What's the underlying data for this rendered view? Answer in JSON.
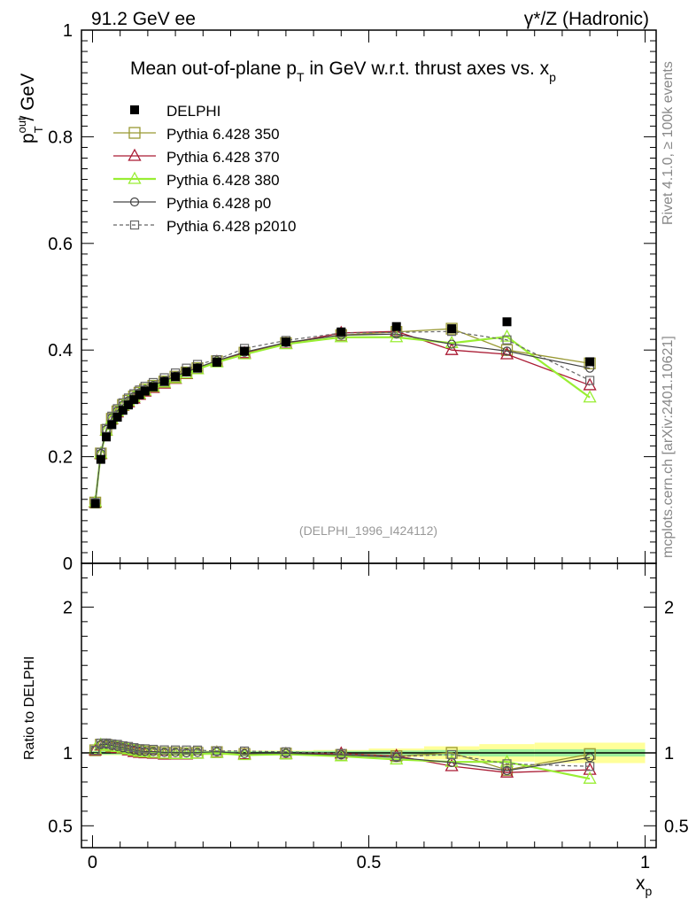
{
  "header": {
    "left": "91.2 GeV ee",
    "right": "γ*/Z (Hadronic)"
  },
  "side_labels": {
    "top": "Rivet 4.1.0, ≥ 100k events",
    "bottom": "mcplots.cern.ch [arXiv:2401.10621]"
  },
  "watermark": "(DELPHI_1996_I424112)",
  "colors": {
    "data": "#000000",
    "p350": "#999933",
    "p370": "#aa1a33",
    "p380": "#99ee33",
    "p0": "#444444",
    "p2010": "#666666",
    "band_inner": "#9bee9b",
    "band_outer": "#ffff99"
  },
  "chart_data": [
    {
      "type": "line",
      "panel": "main",
      "title": "Mean out-of-plane p_T in GeV w.r.t. thrust axes vs. x_p",
      "title_parts": {
        "prefix": "Mean out-of-plane p",
        "sub1": "T",
        "middle": " in GeV w.r.t. thrust axes vs. x",
        "sub2": "p"
      },
      "ylabel": {
        "base": "p",
        "sup": "out",
        "sub": "T",
        "rest": " / GeV"
      },
      "xlim": [
        -0.02,
        1.02
      ],
      "ylim": [
        0,
        1.0
      ],
      "yticks": [
        "0",
        "0.2",
        "0.4",
        "0.6",
        "0.8",
        "1"
      ],
      "x": [
        0.005,
        0.015,
        0.025,
        0.035,
        0.045,
        0.055,
        0.065,
        0.075,
        0.085,
        0.095,
        0.11,
        0.13,
        0.15,
        0.17,
        0.19,
        0.225,
        0.275,
        0.35,
        0.45,
        0.55,
        0.65,
        0.75,
        0.9
      ],
      "series": [
        {
          "name": "DELPHI",
          "style": "data",
          "values": [
            0.112,
            0.195,
            0.237,
            0.26,
            0.274,
            0.287,
            0.297,
            0.307,
            0.316,
            0.323,
            0.331,
            0.341,
            0.35,
            0.359,
            0.366,
            0.377,
            0.398,
            0.415,
            0.434,
            0.444,
            0.44,
            0.453,
            0.378
          ]
        },
        {
          "name": "Pythia 6.428 350",
          "style": "p350",
          "values": [
            0.114,
            0.206,
            0.25,
            0.271,
            0.285,
            0.297,
            0.305,
            0.313,
            0.32,
            0.326,
            0.333,
            0.341,
            0.35,
            0.358,
            0.366,
            0.379,
            0.395,
            0.413,
            0.428,
            0.434,
            0.44,
            0.4,
            0.375
          ]
        },
        {
          "name": "Pythia 6.428 370",
          "style": "p370",
          "values": [
            0.114,
            0.205,
            0.249,
            0.27,
            0.283,
            0.295,
            0.302,
            0.309,
            0.316,
            0.322,
            0.329,
            0.337,
            0.346,
            0.355,
            0.364,
            0.378,
            0.394,
            0.412,
            0.432,
            0.435,
            0.4,
            0.392,
            0.334
          ]
        },
        {
          "name": "Pythia 6.428 380",
          "style": "p380",
          "values": [
            0.115,
            0.206,
            0.249,
            0.271,
            0.285,
            0.296,
            0.304,
            0.312,
            0.318,
            0.324,
            0.331,
            0.339,
            0.347,
            0.356,
            0.364,
            0.377,
            0.392,
            0.411,
            0.424,
            0.424,
            0.413,
            0.425,
            0.311
          ]
        },
        {
          "name": "Pythia 6.428 p0",
          "style": "p0",
          "values": [
            0.114,
            0.206,
            0.251,
            0.273,
            0.286,
            0.297,
            0.305,
            0.313,
            0.32,
            0.326,
            0.334,
            0.342,
            0.351,
            0.359,
            0.367,
            0.38,
            0.396,
            0.414,
            0.428,
            0.43,
            0.411,
            0.398,
            0.366
          ]
        },
        {
          "name": "Pythia 6.428 p2010",
          "style": "p2010",
          "values": [
            0.114,
            0.208,
            0.253,
            0.276,
            0.29,
            0.301,
            0.31,
            0.318,
            0.325,
            0.332,
            0.339,
            0.348,
            0.357,
            0.366,
            0.373,
            0.382,
            0.403,
            0.418,
            0.432,
            0.433,
            0.435,
            0.419,
            0.343
          ]
        }
      ],
      "legend": [
        "DELPHI",
        "Pythia 6.428 350",
        "Pythia 6.428 370",
        "Pythia 6.428 380",
        "Pythia 6.428 p0",
        "Pythia 6.428 p2010"
      ]
    },
    {
      "type": "line",
      "panel": "ratio",
      "ylabel": "Ratio to DELPHI",
      "xlabel": {
        "base": "x",
        "sub": "p"
      },
      "xlim": [
        -0.02,
        1.02
      ],
      "ylim": [
        0.35,
        2.3
      ],
      "xticks": [
        "0",
        "0.5",
        "1"
      ],
      "yticks": [
        "0.5",
        "1",
        "2"
      ],
      "band_edges": [
        0.0,
        0.04,
        0.08,
        0.12,
        0.2,
        0.3,
        0.4,
        0.5,
        0.6,
        0.7,
        0.8,
        1.0
      ],
      "band_inner_halfwidth": [
        0.012,
        0.012,
        0.012,
        0.012,
        0.012,
        0.012,
        0.014,
        0.016,
        0.02,
        0.025,
        0.025
      ],
      "band_outer_halfwidth": [
        0.016,
        0.016,
        0.016,
        0.016,
        0.016,
        0.016,
        0.02,
        0.03,
        0.045,
        0.06,
        0.07
      ]
    }
  ]
}
